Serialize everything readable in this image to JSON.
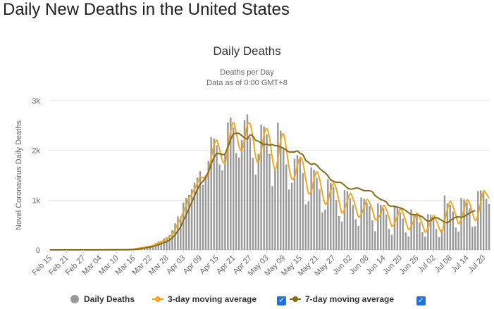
{
  "page": {
    "title": "Daily New Deaths in the United States"
  },
  "chart_data": {
    "type": "bar",
    "title": "Daily Deaths",
    "subtitle": "Deaths per Day",
    "subtitle2": "Data as of 0:00 GMT+8",
    "ylabel": "Novel Coronavirus Daily Deaths",
    "ylim": [
      0,
      3000
    ],
    "yticks": [
      0,
      1000,
      2000,
      3000
    ],
    "yticklabels": [
      "0",
      "1k",
      "2k",
      "3k"
    ],
    "grid": true,
    "legend_position": "bottom",
    "x_start": "Feb 15",
    "x_end": "Jul 25",
    "xticklabels": [
      "Feb 15",
      "Feb 21",
      "Feb 27",
      "Mar 04",
      "Mar 10",
      "Mar 16",
      "Mar 22",
      "Mar 28",
      "Apr 03",
      "Apr 09",
      "Apr 15",
      "Apr 21",
      "Apr 27",
      "May 03",
      "May 09",
      "May 15",
      "May 21",
      "May 27",
      "Jun 02",
      "Jun 08",
      "Jun 14",
      "Jun 20",
      "Jun 26",
      "Jul 02",
      "Jul 08",
      "Jul 14",
      "Jul 20"
    ],
    "colors": {
      "bars": "#999999",
      "ma3": "#f2a71f",
      "ma7": "#8b6914",
      "grid": "#e6e6e6"
    },
    "series": [
      {
        "name": "Daily Deaths",
        "type": "bar",
        "values": [
          0,
          0,
          0,
          0,
          0,
          0,
          0,
          0,
          0,
          0,
          0,
          0,
          0,
          0,
          0,
          1,
          0,
          0,
          1,
          1,
          3,
          2,
          6,
          4,
          1,
          2,
          3,
          4,
          8,
          12,
          21,
          36,
          45,
          57,
          60,
          73,
          83,
          103,
          137,
          168,
          184,
          232,
          254,
          296,
          394,
          533,
          673,
          669,
          953,
          1048,
          1105,
          1219,
          1352,
          1454,
          1581,
          1308,
          1497,
          1788,
          2269,
          2242,
          2102,
          1719,
          1596,
          1918,
          2563,
          2660,
          2459,
          1944,
          1858,
          2209,
          2608,
          2726,
          2256,
          1850,
          1513,
          1931,
          2517,
          2483,
          2325,
          1926,
          1283,
          1637,
          2557,
          2398,
          2042,
          1718,
          1212,
          1347,
          1832,
          1905,
          1832,
          1539,
          913,
          974,
          1658,
          1612,
          1447,
          1213,
          753,
          810,
          1421,
          1347,
          1262,
          1003,
          678,
          570,
          1200,
          1180,
          1035,
          901,
          618,
          485,
          1054,
          1022,
          951,
          880,
          594,
          376,
          932,
          907,
          837,
          710,
          419,
          302,
          889,
          842,
          750,
          630,
          350,
          271,
          812,
          717,
          684,
          553,
          354,
          268,
          718,
          693,
          659,
          420,
          254,
          405,
          1093,
          931,
          907,
          771,
          450,
          366,
          1044,
          1015,
          946,
          834,
          464,
          473,
          1183,
          1196,
          1163,
          1025,
          923
        ]
      },
      {
        "name": "3-day moving average",
        "type": "line",
        "values": [
          0,
          0,
          0,
          0,
          0,
          0,
          0,
          0,
          0,
          0,
          0,
          0,
          0,
          0,
          0,
          0,
          0,
          0,
          1,
          1,
          2,
          2,
          4,
          4,
          4,
          2,
          2,
          3,
          5,
          8,
          14,
          23,
          34,
          46,
          54,
          63,
          72,
          86,
          108,
          136,
          163,
          195,
          223,
          261,
          315,
          408,
          533,
          625,
          765,
          890,
          1035,
          1124,
          1225,
          1342,
          1462,
          1448,
          1462,
          1531,
          1851,
          2100,
          2204,
          2021,
          1806,
          1744,
          2026,
          2380,
          2561,
          2354,
          2087,
          2004,
          2225,
          2514,
          2530,
          2277,
          1873,
          1765,
          1987,
          2310,
          2442,
          2245,
          1845,
          1615,
          1826,
          2197,
          2333,
          2053,
          1657,
          1426,
          1464,
          1695,
          1856,
          1759,
          1428,
          1142,
          1182,
          1415,
          1572,
          1424,
          1138,
          925,
          995,
          1193,
          1343,
          1230,
          981,
          749,
          816,
          985,
          1138,
          1039,
          851,
          668,
          718,
          852,
          1009,
          951,
          808,
          617,
          634,
          725,
          892,
          818,
          655,
          477,
          538,
          678,
          827,
          741,
          578,
          417,
          477,
          605,
          738,
          651,
          512,
          358,
          447,
          567,
          690,
          591,
          444,
          360,
          584,
          810,
          977,
          870,
          703,
          529,
          620,
          808,
          1002,
          932,
          748,
          590,
          707,
          951,
          1181,
          1128,
          1037
        ]
      },
      {
        "name": "7-day moving average",
        "type": "line",
        "values": [
          0,
          0,
          0,
          0,
          0,
          0,
          0,
          0,
          0,
          0,
          0,
          0,
          0,
          0,
          0,
          0,
          0,
          0,
          0,
          0,
          1,
          1,
          2,
          2,
          2,
          3,
          3,
          3,
          4,
          5,
          7,
          12,
          18,
          26,
          34,
          45,
          55,
          68,
          84,
          104,
          125,
          146,
          169,
          200,
          243,
          303,
          382,
          464,
          589,
          702,
          831,
          956,
          1082,
          1211,
          1317,
          1376,
          1461,
          1567,
          1730,
          1853,
          1938,
          1931,
          1917,
          1933,
          2068,
          2215,
          2329,
          2342,
          2341,
          2297,
          2253,
          2231,
          2312,
          2281,
          2207,
          2183,
          2150,
          2116,
          2127,
          2106,
          2115,
          2096,
          2092,
          2067,
          2045,
          2006,
          1970,
          1969,
          1968,
          1989,
          1942,
          1912,
          1804,
          1759,
          1719,
          1734,
          1703,
          1639,
          1590,
          1548,
          1489,
          1408,
          1381,
          1358,
          1357,
          1345,
          1297,
          1247,
          1222,
          1227,
          1242,
          1239,
          1213,
          1192,
          1191,
          1188,
          1166,
          1090,
          1051,
          1014,
          992,
          962,
          893,
          878,
          872,
          858,
          845,
          822,
          790,
          748,
          712,
          709,
          705,
          686,
          663,
          613,
          577,
          590,
          633,
          647,
          625,
          592,
          560,
          547,
          589,
          627,
          657,
          666,
          654,
          668,
          710,
          742,
          772,
          790
        ]
      }
    ]
  },
  "legend": {
    "items": [
      {
        "label": "Daily Deaths",
        "color": "#999999"
      },
      {
        "label": "3-day moving average",
        "color": "#f2a71f"
      },
      {
        "label": "7-day moving average",
        "color": "#8b6914"
      }
    ]
  }
}
